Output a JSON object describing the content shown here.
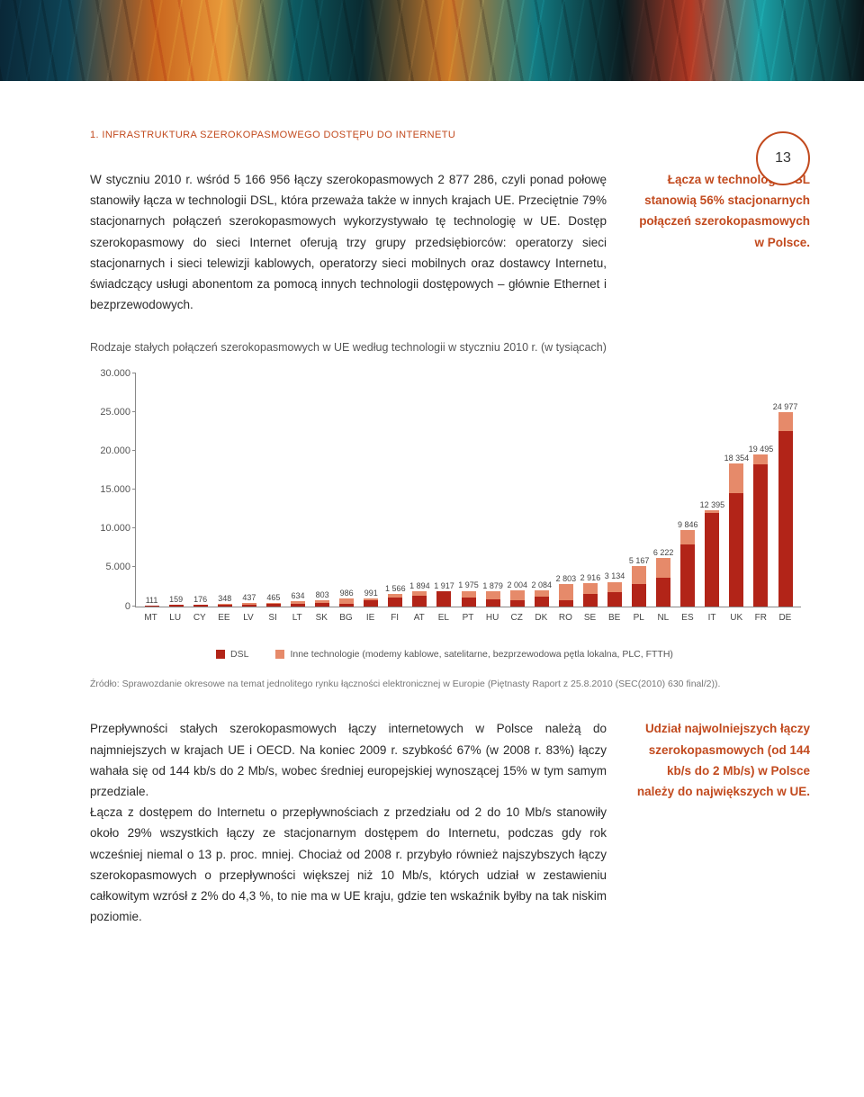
{
  "page_number": "13",
  "section_header": "1. INFRASTRUKTURA SZEROKOPASMOWEGO DOSTĘPU DO INTERNETU",
  "para1": "W styczniu 2010 r. wśród 5 166 956 łączy szerokopasmowych 2 877 286, czyli ponad połowę stanowiły łącza w technologii DSL, która przeważa także w innych krajach UE. Przeciętnie 79% stacjonarnych połączeń szerokopasmowych wykorzystywało tę technologię w UE. Dostęp szerokopasmowy do sieci Internet oferują trzy grupy przedsiębiorców: operatorzy sieci stacjonarnych i sieci telewizji kablowych, operatorzy sieci mobilnych oraz dostawcy Internetu, świadczący usługi abonentom za pomocą innych technologii dostępowych – głównie Ethernet i bezprzewodowych.",
  "callout1": "Łącza w technologii DSL stanowią 56% stacjonarnych połączeń szerokopasmowych w Polsce.",
  "chart_title": "Rodzaje stałych połączeń szerokopasmowych w UE według technologii w styczniu 2010 r. (w tysiącach)",
  "chart": {
    "type": "stacked-bar",
    "ymax": 30000,
    "yticks": [
      0,
      5000,
      10000,
      15000,
      20000,
      25000,
      30000
    ],
    "ytick_labels": [
      "0",
      "5.000",
      "10.000",
      "15.000",
      "20.000",
      "25.000",
      "30.000"
    ],
    "colors": {
      "dsl": "#b22418",
      "other": "#e68a6a"
    },
    "series_labels": {
      "dsl": "DSL",
      "other": "Inne technologie (modemy kablowe, satelitarne, bezprzewodowa pętla lokalna, PLC, FTTH)"
    },
    "bars": [
      {
        "x": "MT",
        "total": 111,
        "dsl": 100,
        "label": "111"
      },
      {
        "x": "LU",
        "total": 159,
        "dsl": 150,
        "label": "159"
      },
      {
        "x": "CY",
        "total": 176,
        "dsl": 168,
        "label": "176"
      },
      {
        "x": "EE",
        "total": 348,
        "dsl": 170,
        "label": "348"
      },
      {
        "x": "LV",
        "total": 437,
        "dsl": 210,
        "label": "437"
      },
      {
        "x": "SI",
        "total": 465,
        "dsl": 260,
        "label": "465"
      },
      {
        "x": "LT",
        "total": 634,
        "dsl": 280,
        "label": "634"
      },
      {
        "x": "SK",
        "total": 803,
        "dsl": 400,
        "label": "803"
      },
      {
        "x": "BG",
        "total": 986,
        "dsl": 300,
        "label": "986"
      },
      {
        "x": "IE",
        "total": 991,
        "dsl": 740,
        "label": "991"
      },
      {
        "x": "FI",
        "total": 1566,
        "dsl": 1100,
        "label": "1 566"
      },
      {
        "x": "AT",
        "total": 1894,
        "dsl": 1300,
        "label": "1 894"
      },
      {
        "x": "EL",
        "total": 1917,
        "dsl": 1900,
        "label": "1 917"
      },
      {
        "x": "PT",
        "total": 1975,
        "dsl": 1100,
        "label": "1 975"
      },
      {
        "x": "HU",
        "total": 1879,
        "dsl": 900,
        "label": "1 879"
      },
      {
        "x": "CZ",
        "total": 2004,
        "dsl": 800,
        "label": "2 004"
      },
      {
        "x": "DK",
        "total": 2084,
        "dsl": 1250,
        "label": "2 084"
      },
      {
        "x": "RO",
        "total": 2803,
        "dsl": 800,
        "label": "2 803"
      },
      {
        "x": "SE",
        "total": 2916,
        "dsl": 1600,
        "label": "2 916"
      },
      {
        "x": "BE",
        "total": 3134,
        "dsl": 1800,
        "label": "3 134"
      },
      {
        "x": "PL",
        "total": 5167,
        "dsl": 2877,
        "label": "5 167"
      },
      {
        "x": "NL",
        "total": 6222,
        "dsl": 3700,
        "label": "6 222"
      },
      {
        "x": "ES",
        "total": 9846,
        "dsl": 7900,
        "label": "9 846"
      },
      {
        "x": "IT",
        "total": 12395,
        "dsl": 12000,
        "label": "12 395"
      },
      {
        "x": "UK",
        "total": 18354,
        "dsl": 14500,
        "label": "18 354"
      },
      {
        "x": "FR",
        "total": 19495,
        "dsl": 18200,
        "label": "19 495"
      },
      {
        "x": "DE",
        "total": 24977,
        "dsl": 22500,
        "label": "24 977"
      }
    ]
  },
  "source": "Źródło: Sprawozdanie okresowe na temat jednolitego rynku łączności elektronicznej w Europie (Piętnasty Raport z 25.8.2010 (SEC(2010) 630 final/2)).",
  "para2": "Przepływności stałych szerokopasmowych łączy internetowych w Polsce należą do najmniejszych w krajach UE i OECD. Na koniec 2009 r. szybkość 67% (w 2008 r. 83%) łączy wahała się od 144 kb/s do 2 Mb/s, wobec średniej europejskiej wynoszącej 15% w tym samym przedziale.\nŁącza z dostępem do Internetu o przepływnościach z przedziału od 2 do 10 Mb/s stanowiły około 29% wszystkich łączy ze stacjonarnym dostępem do Internetu, podczas gdy rok wcześniej niemal o 13 p. proc. mniej. Chociaż od 2008 r. przybyło również najszybszych łączy szerokopasmowych o przepływności większej niż 10 Mb/s, których udział w zestawieniu całkowitym wzrósł z 2% do 4,3 %, to nie ma w UE kraju, gdzie ten wskaźnik byłby na tak niskim poziomie.",
  "callout2": "Udział najwolniejszych łączy szerokopasmowych (od 144 kb/s do 2 Mb/s) w Polsce należy do największych w UE."
}
